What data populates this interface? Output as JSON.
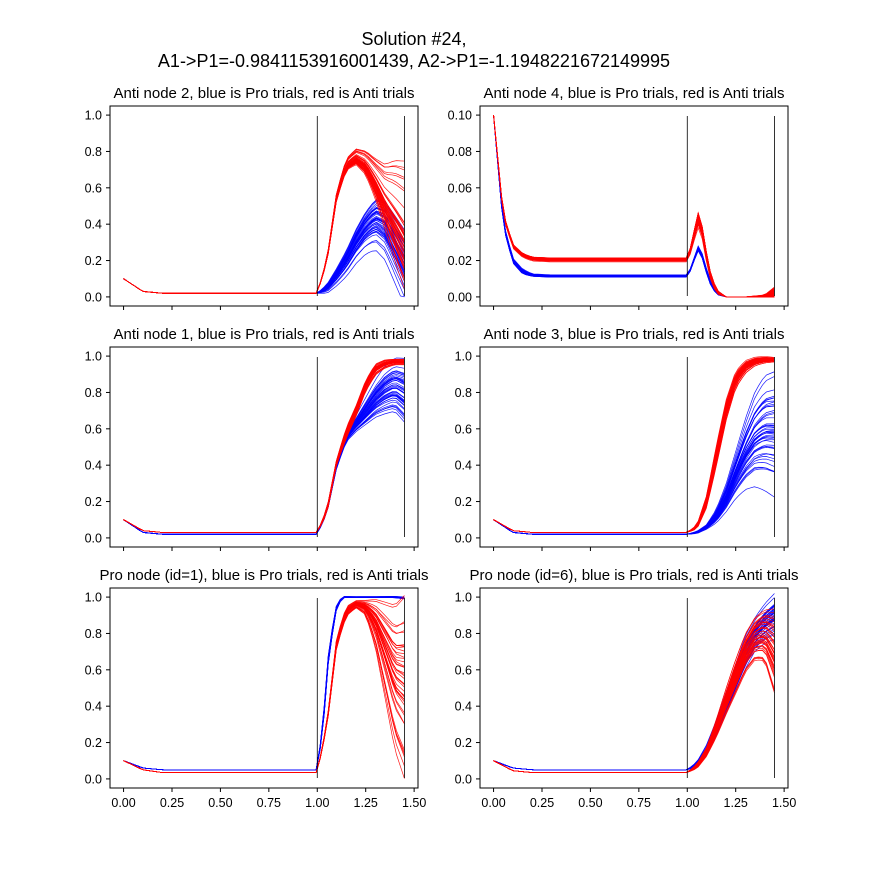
{
  "figure": {
    "title_line1": "Solution #24,",
    "title_line2": "A1->P1=-0.9841153916001439,  A2->P1=-1.1948221672149995",
    "colors": {
      "pro": "#0000ff",
      "anti": "#ff0000",
      "marker": "#000000"
    }
  },
  "chart_data": [
    {
      "type": "line",
      "title": "Anti node 2, blue is Pro trials, red is Anti trials",
      "xlim": [
        -0.07,
        1.52
      ],
      "ylim": [
        -0.05,
        1.05
      ],
      "yticks": [
        0.0,
        0.2,
        0.4,
        0.6,
        0.8,
        1.0
      ],
      "ytick_labels": [
        "0.0",
        "0.2",
        "0.4",
        "0.6",
        "0.8",
        "1.0"
      ],
      "xticks": [
        0.0,
        0.25,
        0.5,
        0.75,
        1.0,
        1.25,
        1.5
      ],
      "xtick_labels": [],
      "vlines": [
        1.0,
        1.45
      ],
      "series": [
        {
          "group": "pro",
          "trials": 45,
          "x": [
            0,
            0.1,
            0.2,
            0.5,
            1.0,
            1.05,
            1.1,
            1.15,
            1.2,
            1.25,
            1.3,
            1.35,
            1.4,
            1.45
          ],
          "values": [
            0.1,
            0.03,
            0.02,
            0.02,
            0.02,
            0.05,
            0.12,
            0.2,
            0.3,
            0.38,
            0.43,
            0.4,
            0.3,
            0.2
          ],
          "spread": [
            0,
            0,
            0,
            0,
            0,
            0.02,
            0.04,
            0.06,
            0.08,
            0.1,
            0.12,
            0.14,
            0.16,
            0.18
          ]
        },
        {
          "group": "anti",
          "trials": 45,
          "x": [
            0,
            0.1,
            0.2,
            0.5,
            1.0,
            1.05,
            1.1,
            1.15,
            1.2,
            1.25,
            1.3,
            1.35,
            1.4,
            1.45
          ],
          "values": [
            0.1,
            0.03,
            0.02,
            0.02,
            0.02,
            0.2,
            0.55,
            0.72,
            0.76,
            0.72,
            0.62,
            0.5,
            0.4,
            0.3
          ],
          "spread": [
            0,
            0,
            0,
            0,
            0,
            0.01,
            0.02,
            0.03,
            0.04,
            0.06,
            0.1,
            0.16,
            0.24,
            0.3
          ]
        }
      ]
    },
    {
      "type": "line",
      "title": "Anti node 4, blue is Pro trials, red is Anti trials",
      "xlim": [
        -0.07,
        1.52
      ],
      "ylim": [
        -0.005,
        0.105
      ],
      "yticks": [
        0.0,
        0.02,
        0.04,
        0.06,
        0.08,
        0.1
      ],
      "ytick_labels": [
        "0.00",
        "0.02",
        "0.04",
        "0.06",
        "0.08",
        "0.10"
      ],
      "xticks": [
        0.0,
        0.25,
        0.5,
        0.75,
        1.0,
        1.25,
        1.5
      ],
      "xtick_labels": [],
      "vlines": [
        1.0,
        1.45
      ],
      "series": [
        {
          "group": "pro",
          "trials": 45,
          "x": [
            0,
            0.05,
            0.1,
            0.15,
            0.2,
            0.3,
            0.5,
            1.0,
            1.03,
            1.05,
            1.08,
            1.11,
            1.15,
            1.2,
            1.3,
            1.4,
            1.45
          ],
          "values": [
            0.1,
            0.04,
            0.02,
            0.014,
            0.012,
            0.0115,
            0.0115,
            0.0115,
            0.018,
            0.028,
            0.022,
            0.01,
            0.002,
            0,
            0,
            0,
            0
          ],
          "spread": [
            0,
            0.001,
            0.001,
            0.001,
            0.0005,
            0.0005,
            0.0005,
            0.0005,
            0.0005,
            0.001,
            0.001,
            0.001,
            0.0005,
            0,
            0,
            0,
            0.001
          ]
        },
        {
          "group": "anti",
          "trials": 45,
          "x": [
            0,
            0.05,
            0.1,
            0.15,
            0.2,
            0.3,
            0.5,
            1.0,
            1.03,
            1.05,
            1.08,
            1.11,
            1.15,
            1.2,
            1.3,
            1.4,
            1.45
          ],
          "values": [
            0.1,
            0.045,
            0.028,
            0.023,
            0.021,
            0.0205,
            0.0205,
            0.0205,
            0.03,
            0.045,
            0.035,
            0.015,
            0.003,
            0,
            0,
            0,
            0.002
          ],
          "spread": [
            0,
            0.001,
            0.001,
            0.001,
            0.001,
            0.001,
            0.001,
            0.001,
            0.002,
            0.004,
            0.003,
            0.002,
            0.001,
            0,
            0,
            0.001,
            0.003
          ]
        }
      ]
    },
    {
      "type": "line",
      "title": "Anti node 1, blue is Pro trials, red is Anti trials",
      "xlim": [
        -0.07,
        1.52
      ],
      "ylim": [
        -0.05,
        1.05
      ],
      "yticks": [
        0.0,
        0.2,
        0.4,
        0.6,
        0.8,
        1.0
      ],
      "ytick_labels": [
        "0.0",
        "0.2",
        "0.4",
        "0.6",
        "0.8",
        "1.0"
      ],
      "xticks": [
        0.0,
        0.25,
        0.5,
        0.75,
        1.0,
        1.25,
        1.5
      ],
      "xtick_labels": [],
      "vlines": [
        1.0,
        1.45
      ],
      "series": [
        {
          "group": "pro",
          "trials": 45,
          "x": [
            0,
            0.1,
            0.2,
            0.5,
            1.0,
            1.05,
            1.1,
            1.15,
            1.2,
            1.25,
            1.3,
            1.35,
            1.4,
            1.45
          ],
          "values": [
            0.1,
            0.03,
            0.02,
            0.02,
            0.02,
            0.15,
            0.4,
            0.56,
            0.63,
            0.7,
            0.77,
            0.82,
            0.85,
            0.82
          ],
          "spread": [
            0,
            0,
            0,
            0,
            0,
            0.01,
            0.01,
            0.02,
            0.03,
            0.05,
            0.07,
            0.09,
            0.1,
            0.12
          ]
        },
        {
          "group": "anti",
          "trials": 45,
          "x": [
            0,
            0.1,
            0.2,
            0.5,
            1.0,
            1.05,
            1.1,
            1.15,
            1.2,
            1.25,
            1.3,
            1.35,
            1.4,
            1.45
          ],
          "values": [
            0.1,
            0.04,
            0.03,
            0.03,
            0.03,
            0.15,
            0.42,
            0.58,
            0.7,
            0.84,
            0.93,
            0.96,
            0.97,
            0.97
          ],
          "spread": [
            0,
            0,
            0,
            0,
            0,
            0.01,
            0.01,
            0.02,
            0.02,
            0.02,
            0.02,
            0.015,
            0.01,
            0.01
          ]
        }
      ]
    },
    {
      "type": "line",
      "title": "Anti node 3, blue is Pro trials, red is Anti trials",
      "xlim": [
        -0.07,
        1.52
      ],
      "ylim": [
        -0.05,
        1.05
      ],
      "yticks": [
        0.0,
        0.2,
        0.4,
        0.6,
        0.8,
        1.0
      ],
      "ytick_labels": [
        "0.0",
        "0.2",
        "0.4",
        "0.6",
        "0.8",
        "1.0"
      ],
      "xticks": [
        0.0,
        0.25,
        0.5,
        0.75,
        1.0,
        1.25,
        1.5
      ],
      "xtick_labels": [],
      "vlines": [
        1.0,
        1.45
      ],
      "series": [
        {
          "group": "pro",
          "trials": 45,
          "x": [
            0,
            0.1,
            0.2,
            0.5,
            1.0,
            1.05,
            1.1,
            1.15,
            1.2,
            1.25,
            1.3,
            1.35,
            1.4,
            1.45
          ],
          "values": [
            0.1,
            0.03,
            0.02,
            0.02,
            0.02,
            0.03,
            0.06,
            0.12,
            0.22,
            0.35,
            0.47,
            0.56,
            0.6,
            0.6
          ],
          "spread": [
            0,
            0,
            0,
            0,
            0,
            0.005,
            0.01,
            0.03,
            0.06,
            0.1,
            0.15,
            0.2,
            0.24,
            0.26
          ]
        },
        {
          "group": "anti",
          "trials": 45,
          "x": [
            0,
            0.1,
            0.2,
            0.5,
            1.0,
            1.05,
            1.1,
            1.15,
            1.2,
            1.25,
            1.3,
            1.35,
            1.4,
            1.45
          ],
          "values": [
            0.1,
            0.04,
            0.03,
            0.03,
            0.03,
            0.06,
            0.2,
            0.45,
            0.7,
            0.87,
            0.94,
            0.97,
            0.98,
            0.98
          ],
          "spread": [
            0,
            0,
            0,
            0,
            0,
            0.01,
            0.03,
            0.05,
            0.05,
            0.04,
            0.03,
            0.02,
            0.015,
            0.01
          ]
        }
      ]
    },
    {
      "type": "line",
      "title": "Pro node (id=1), blue is Pro trials, red is Anti trials",
      "xlim": [
        -0.07,
        1.52
      ],
      "ylim": [
        -0.05,
        1.05
      ],
      "yticks": [
        0.0,
        0.2,
        0.4,
        0.6,
        0.8,
        1.0
      ],
      "ytick_labels": [
        "0.0",
        "0.2",
        "0.4",
        "0.6",
        "0.8",
        "1.0"
      ],
      "xticks": [
        0.0,
        0.25,
        0.5,
        0.75,
        1.0,
        1.25,
        1.5
      ],
      "xtick_labels": [
        "0.00",
        "0.25",
        "0.50",
        "0.75",
        "1.00",
        "1.25",
        "1.50"
      ],
      "vlines": [
        1.0,
        1.45
      ],
      "series": [
        {
          "group": "pro",
          "trials": 45,
          "x": [
            0,
            0.1,
            0.2,
            0.5,
            1.0,
            1.03,
            1.06,
            1.1,
            1.13,
            1.2,
            1.3,
            1.4,
            1.45
          ],
          "values": [
            0.1,
            0.06,
            0.05,
            0.05,
            0.05,
            0.3,
            0.7,
            0.95,
            1.0,
            1.0,
            1.0,
            1.0,
            0.995
          ],
          "spread": [
            0,
            0,
            0,
            0,
            0,
            0.02,
            0.02,
            0.01,
            0.003,
            0.002,
            0.002,
            0.003,
            0.004
          ]
        },
        {
          "group": "anti",
          "trials": 45,
          "x": [
            0,
            0.1,
            0.2,
            0.5,
            1.0,
            1.05,
            1.1,
            1.15,
            1.2,
            1.25,
            1.3,
            1.35,
            1.4,
            1.45
          ],
          "values": [
            0.1,
            0.05,
            0.035,
            0.035,
            0.035,
            0.3,
            0.75,
            0.92,
            0.96,
            0.94,
            0.85,
            0.7,
            0.55,
            0.5
          ],
          "spread": [
            0,
            0,
            0,
            0,
            0,
            0.01,
            0.02,
            0.02,
            0.015,
            0.03,
            0.1,
            0.2,
            0.3,
            0.38
          ]
        }
      ]
    },
    {
      "type": "line",
      "title": "Pro node (id=6), blue is Pro trials, red is Anti trials",
      "xlim": [
        -0.07,
        1.52
      ],
      "ylim": [
        -0.05,
        1.05
      ],
      "yticks": [
        0.0,
        0.2,
        0.4,
        0.6,
        0.8,
        1.0
      ],
      "ytick_labels": [
        "0.0",
        "0.2",
        "0.4",
        "0.6",
        "0.8",
        "1.0"
      ],
      "xticks": [
        0.0,
        0.25,
        0.5,
        0.75,
        1.0,
        1.25,
        1.5
      ],
      "xtick_labels": [
        "0.00",
        "0.25",
        "0.50",
        "0.75",
        "1.00",
        "1.25",
        "1.50"
      ],
      "vlines": [
        1.0,
        1.45
      ],
      "series": [
        {
          "group": "pro",
          "trials": 45,
          "x": [
            0,
            0.1,
            0.2,
            0.5,
            1.0,
            1.05,
            1.1,
            1.15,
            1.2,
            1.25,
            1.3,
            1.35,
            1.4,
            1.45
          ],
          "values": [
            0.1,
            0.06,
            0.05,
            0.05,
            0.05,
            0.08,
            0.16,
            0.28,
            0.42,
            0.56,
            0.7,
            0.8,
            0.86,
            0.9
          ],
          "spread": [
            0,
            0,
            0,
            0,
            0,
            0.01,
            0.02,
            0.03,
            0.04,
            0.05,
            0.06,
            0.06,
            0.07,
            0.08
          ]
        },
        {
          "group": "anti",
          "trials": 45,
          "x": [
            0,
            0.1,
            0.2,
            0.5,
            1.0,
            1.05,
            1.1,
            1.15,
            1.2,
            1.25,
            1.3,
            1.35,
            1.4,
            1.45
          ],
          "values": [
            0.1,
            0.045,
            0.035,
            0.035,
            0.035,
            0.07,
            0.15,
            0.28,
            0.43,
            0.57,
            0.7,
            0.78,
            0.8,
            0.72
          ],
          "spread": [
            0,
            0,
            0,
            0,
            0,
            0.01,
            0.02,
            0.04,
            0.06,
            0.08,
            0.09,
            0.1,
            0.12,
            0.2
          ]
        }
      ]
    }
  ]
}
